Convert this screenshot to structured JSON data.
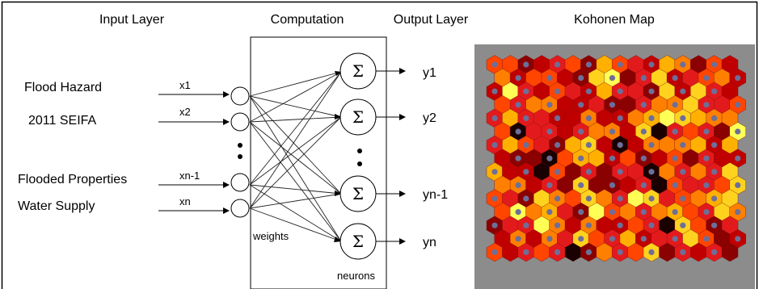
{
  "headers": {
    "input_layer": "Input Layer",
    "computation": "Computation",
    "output_layer": "Output Layer",
    "kohonen_map": "Kohonen Map"
  },
  "inputs": [
    {
      "feature": "Flood Hazard",
      "var": "x1"
    },
    {
      "feature": "2011 SEIFA",
      "var": "x2"
    },
    {
      "feature": "Flooded Properties",
      "var": "xn-1"
    },
    {
      "feature": "Water Supply",
      "var": "xn"
    }
  ],
  "outputs": [
    "y1",
    "y2",
    "yn-1",
    "yn"
  ],
  "sigma_symbol": "Σ",
  "weights_label": "weights",
  "neurons_label": "neurons",
  "colors": {
    "map_background": "#8c8c8c",
    "node_dot": "#6c6f99",
    "heat_palette": [
      "#1a0000",
      "#8b0000",
      "#c00000",
      "#e31a1c",
      "#ff4500",
      "#ff7f00",
      "#ffb000",
      "#ffd21e",
      "#ffff55"
    ]
  }
}
